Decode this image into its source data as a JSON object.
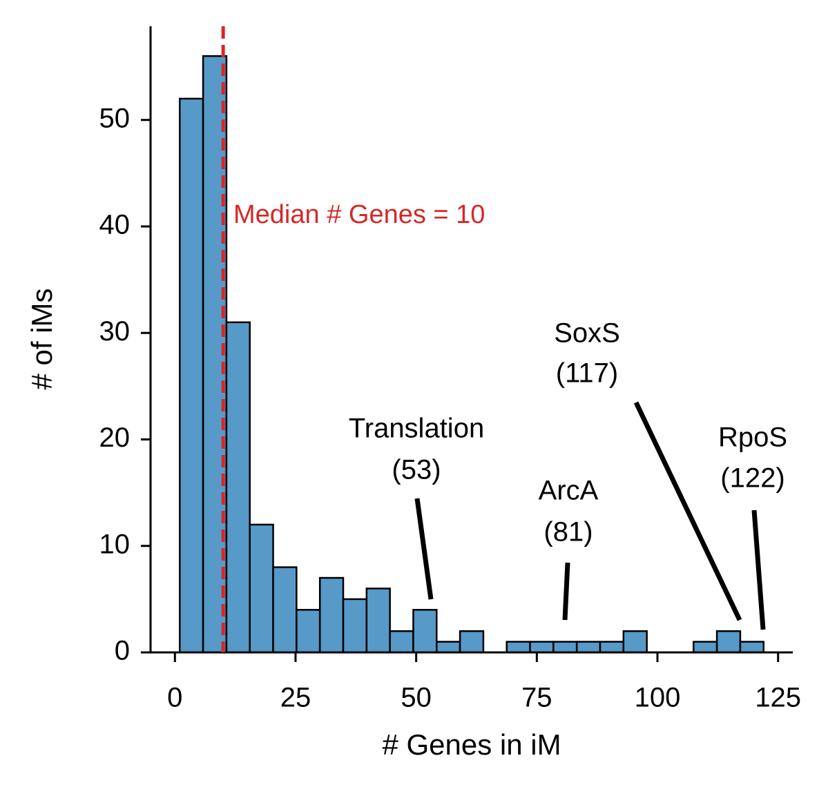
{
  "chart_data": {
    "type": "histogram",
    "x_label": "# Genes in iM",
    "y_label": "# of iMs",
    "bins": [
      1,
      5.84,
      10.68,
      15.52,
      20.36,
      25.2,
      30.04,
      34.88,
      39.72,
      44.56,
      49.4,
      54.24,
      59.08,
      63.92,
      68.76,
      73.6,
      78.44,
      83.28,
      88.12,
      92.96,
      97.8,
      102.64,
      107.48,
      112.32,
      117.16,
      122
    ],
    "values": [
      52,
      56,
      31,
      12,
      8,
      4,
      7,
      5,
      6,
      2,
      4,
      1,
      2,
      0,
      1,
      1,
      1,
      1,
      1,
      2,
      0,
      0,
      1,
      2,
      1
    ],
    "color": "#5799c7",
    "edge_color": "#000000",
    "xlim": [
      -5.05,
      128.05
    ],
    "xticks": [
      0,
      25,
      50,
      75,
      100,
      125
    ],
    "ylim": [
      0,
      58.8
    ],
    "yticks": [
      0,
      10,
      20,
      30,
      40,
      50
    ],
    "median": {
      "value": 10,
      "label": "Median # Genes = 10",
      "color": "#d62728"
    },
    "annotations": [
      {
        "lines": [
          "Translation",
          "(53)"
        ]
      },
      {
        "lines": [
          "ArcA",
          "(81)"
        ]
      },
      {
        "lines": [
          "SoxS",
          "(117)"
        ]
      },
      {
        "lines": [
          "RpoS",
          "(122)"
        ]
      }
    ]
  }
}
